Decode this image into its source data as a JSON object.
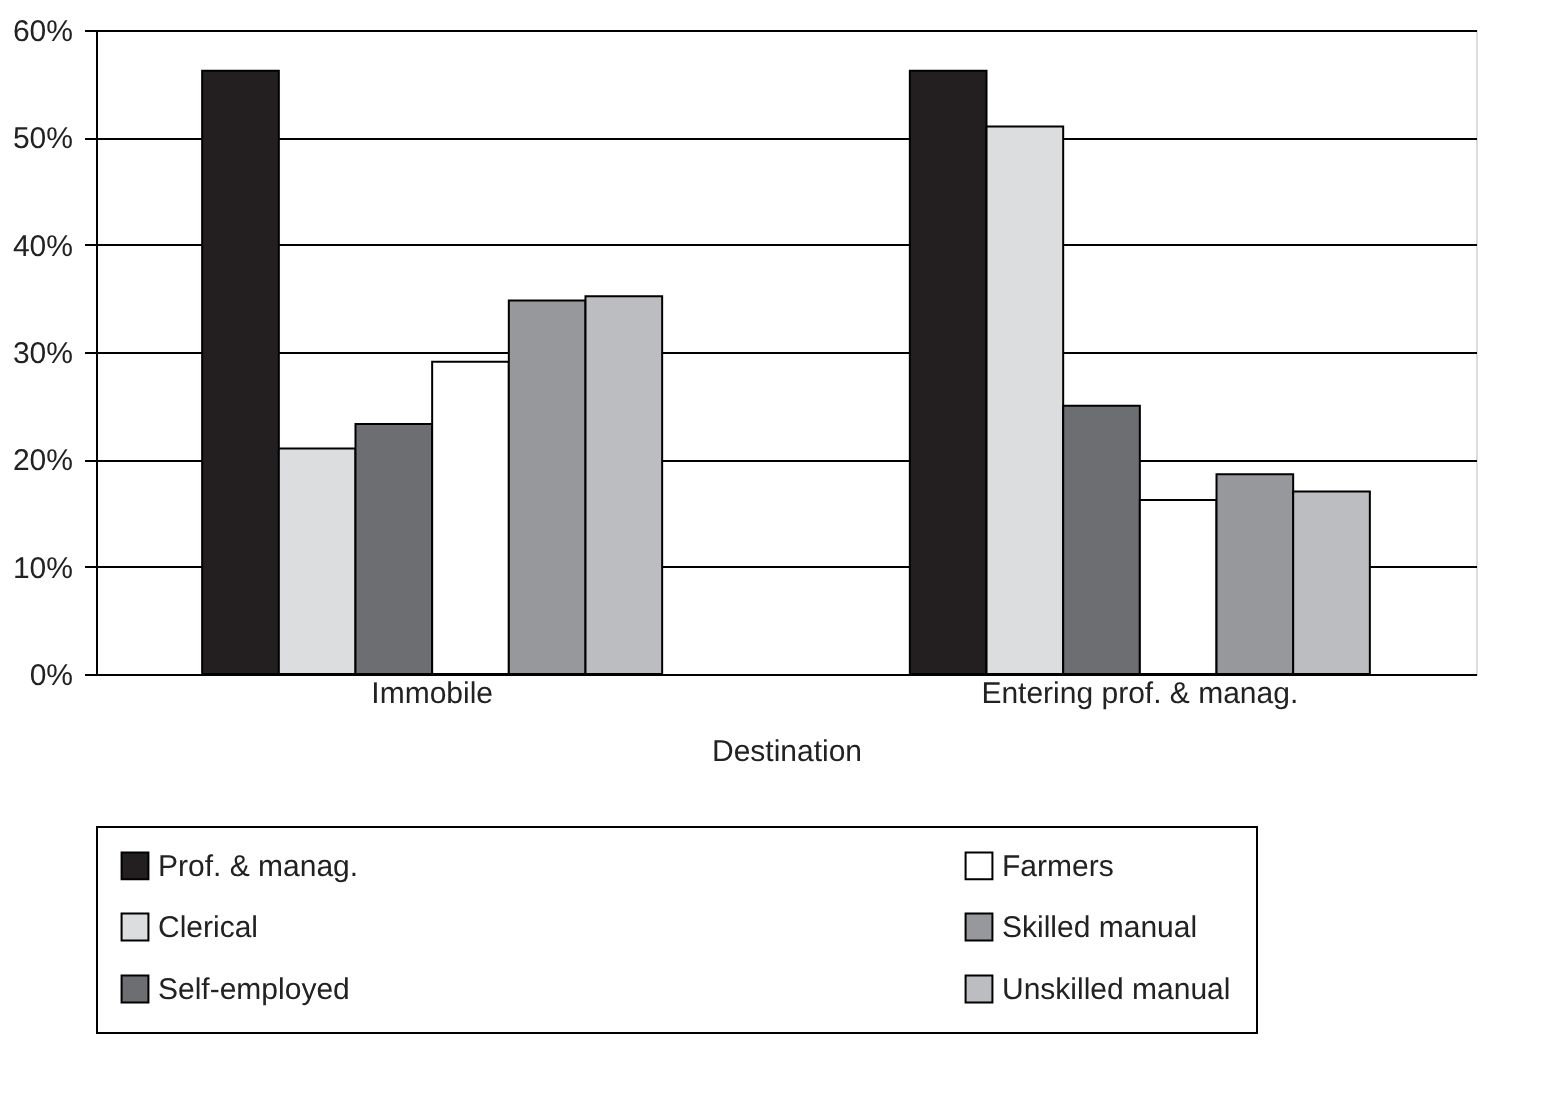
{
  "chart_data": {
    "type": "bar",
    "xlabel": "Destination",
    "categories": [
      "Immobile",
      "Entering prof. & manag."
    ],
    "series": [
      {
        "name": "Prof. & manag.",
        "color": "#231f20",
        "values": [
          56.2,
          56.2
        ]
      },
      {
        "name": "Clerical",
        "color": "#dcdddf",
        "values": [
          21.0,
          51.0
        ]
      },
      {
        "name": "Self-employed",
        "color": "#6d6e71",
        "values": [
          23.3,
          25.0
        ]
      },
      {
        "name": "Farmers",
        "color": "#ffffff",
        "values": [
          29.1,
          16.2
        ]
      },
      {
        "name": "Skilled manual",
        "color": "#97989b",
        "values": [
          34.8,
          18.6
        ]
      },
      {
        "name": "Unskilled manual",
        "color": "#bcbdc0",
        "values": [
          35.2,
          17.0
        ]
      }
    ],
    "ylim": [
      0,
      60
    ],
    "yticks": [
      {
        "value": 0,
        "label": "0%"
      },
      {
        "value": 10,
        "label": "10%"
      },
      {
        "value": 20,
        "label": "20%"
      },
      {
        "value": 30,
        "label": "30%"
      },
      {
        "value": 40,
        "label": "40%"
      },
      {
        "value": 50,
        "label": "50%"
      },
      {
        "value": 60,
        "label": "60%"
      }
    ],
    "grid": "y",
    "legend": "bottom"
  }
}
